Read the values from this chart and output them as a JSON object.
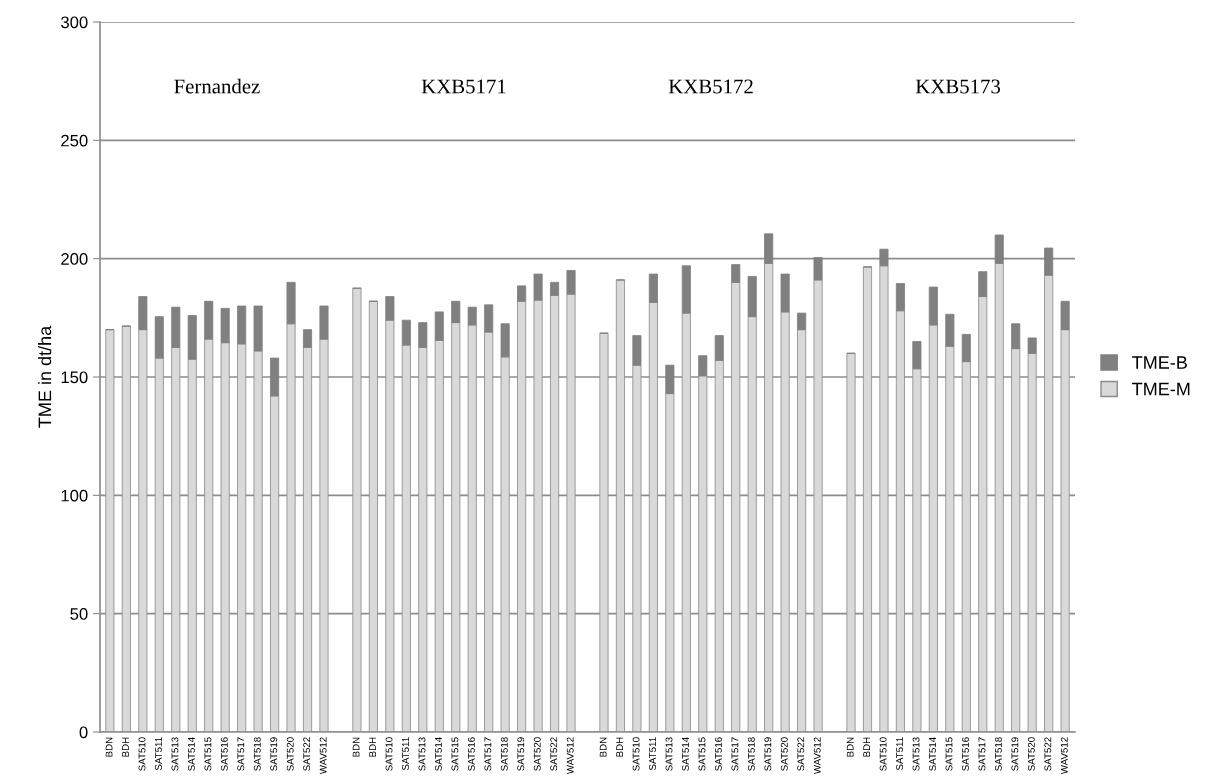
{
  "chart_data": {
    "type": "bar",
    "stacked": true,
    "ylabel": "TME in dt/ha",
    "categories": [
      "BDN",
      "BDH",
      "SAT510",
      "SAT511",
      "SAT513",
      "SAT514",
      "SAT515",
      "SAT516",
      "SAT517",
      "SAT518",
      "SAT519",
      "SAT520",
      "SAT522",
      "WAV512",
      null,
      "BDN",
      "BDH",
      "SAT510",
      "SAT511",
      "SAT513",
      "SAT514",
      "SAT515",
      "SAT516",
      "SAT517",
      "SAT518",
      "SAT519",
      "SAT520",
      "SAT522",
      "WAV512",
      null,
      "BDN",
      "BDH",
      "SAT510",
      "SAT511",
      "SAT513",
      "SAT514",
      "SAT515",
      "SAT516",
      "SAT517",
      "SAT518",
      "SAT519",
      "SAT520",
      "SAT522",
      "WAV512",
      null,
      "BDN",
      "BDH",
      "SAT510",
      "SAT511",
      "SAT513",
      "SAT514",
      "SAT515",
      "SAT516",
      "SAT517",
      "SAT518",
      "SAT519",
      "SAT520",
      "SAT522",
      "WAV512"
    ],
    "series": [
      {
        "name": "TME-M",
        "color": "#d9d9d9",
        "values": [
          170,
          171.5,
          170,
          158,
          162.5,
          157.5,
          166,
          164.5,
          164,
          161,
          142,
          172.5,
          162.5,
          166,
          null,
          187.5,
          182,
          174,
          163.5,
          162.5,
          165.5,
          173,
          172,
          169,
          158.5,
          182,
          182.5,
          184.5,
          185,
          null,
          168.5,
          191,
          155,
          181.5,
          143,
          177,
          150.5,
          157,
          190,
          175.5,
          198,
          177.5,
          170,
          191,
          null,
          160,
          196.5,
          197,
          178,
          153.5,
          172,
          163,
          156.5,
          184,
          198,
          162,
          160,
          193,
          170
        ]
      },
      {
        "name": "TME-B",
        "color": "#808080",
        "values": [
          0,
          0,
          14,
          17.5,
          17,
          18.5,
          16,
          14.5,
          16,
          19,
          16,
          17.5,
          7.5,
          14,
          null,
          0,
          0,
          10,
          10.5,
          10.5,
          12,
          9,
          7.5,
          11.5,
          14,
          6.5,
          11,
          5.5,
          10,
          null,
          0,
          0,
          12.5,
          12,
          12,
          20,
          8.5,
          10.5,
          7.5,
          17,
          12.5,
          16,
          7,
          9.5,
          null,
          0,
          0,
          7,
          11.5,
          11.5,
          16,
          13.5,
          11.5,
          10.5,
          12,
          10.5,
          6.5,
          11.5,
          12
        ]
      }
    ],
    "ylim": [
      0,
      300
    ],
    "yticks": [
      0,
      50,
      100,
      150,
      200,
      250,
      300
    ],
    "grid": "y",
    "legend": "right",
    "annotations": [
      "Fernandez",
      "KXB5171",
      "KXB5172",
      "KXB5173"
    ]
  }
}
